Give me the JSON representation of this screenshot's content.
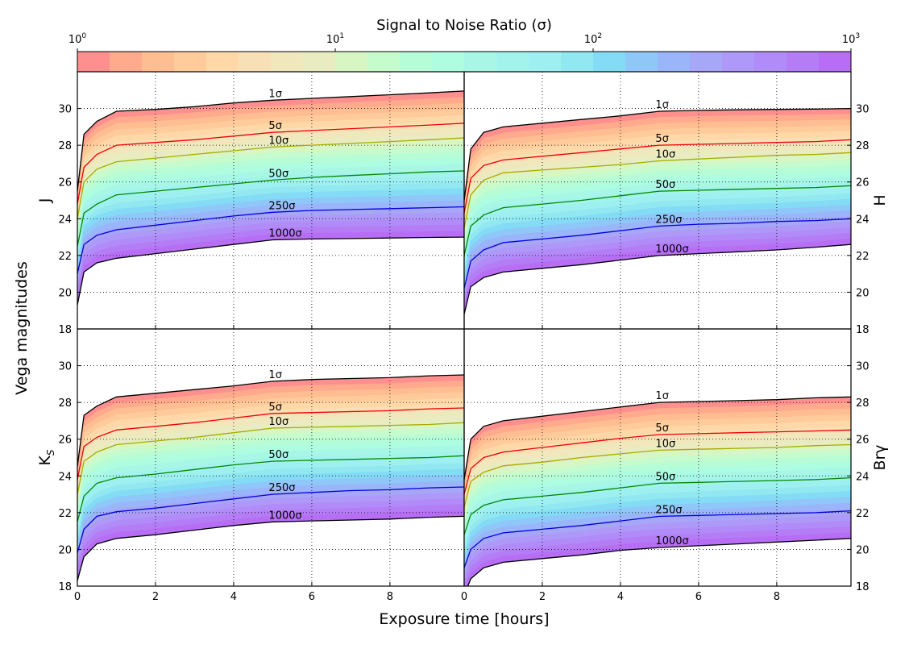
{
  "figure": {
    "colorbar_label": "Signal to Noise Ratio (σ)",
    "colorbar_ticks": [
      {
        "base": "10",
        "exp": "0"
      },
      {
        "base": "10",
        "exp": "1"
      },
      {
        "base": "10",
        "exp": "2"
      },
      {
        "base": "10",
        "exp": "3"
      }
    ],
    "colorbar_colors": [
      "#fe8f8f",
      "#ffaa8c",
      "#ffbe92",
      "#ffcb9b",
      "#ffd8a7",
      "#f8e0b6",
      "#f0e8bc",
      "#e9ebc0",
      "#d8f6c4",
      "#c5fbcd",
      "#b5fcd7",
      "#aefde0",
      "#a8f7e6",
      "#a2f3ec",
      "#9ef0f0",
      "#91e8f0",
      "#84dbf5",
      "#8fc8f8",
      "#9bb5fa",
      "#a7a7f8",
      "#ae99f8",
      "#b18bf7",
      "#b47df6",
      "#b76ef5"
    ],
    "ylabel": "Vega magnitudes",
    "xlabel": "Exposure time [hours]",
    "yticks": [
      "18",
      "20",
      "22",
      "24",
      "26",
      "28",
      "30"
    ],
    "xticks": [
      "0",
      "2",
      "4",
      "6",
      "8"
    ]
  },
  "chart_data": [
    {
      "type": "area",
      "band_label": "J",
      "position": "top-left",
      "x": [
        0,
        0.17,
        0.5,
        1,
        2,
        3,
        4,
        5,
        6,
        7,
        8,
        9,
        9.9
      ],
      "xlim": [
        0,
        9.9
      ],
      "ylim": [
        18,
        32
      ],
      "fill_range": [
        "1σ",
        "1000σ"
      ],
      "series": [
        {
          "name": "1σ",
          "values": [
            25.5,
            28.6,
            29.3,
            29.85,
            29.95,
            30.1,
            30.3,
            30.45,
            30.55,
            30.65,
            30.75,
            30.85,
            30.95
          ],
          "color": "#000000"
        },
        {
          "name": "5σ",
          "values": [
            24.8,
            26.8,
            27.5,
            28.0,
            28.15,
            28.3,
            28.5,
            28.7,
            28.8,
            28.9,
            29.0,
            29.1,
            29.2
          ],
          "color": "#ee0000"
        },
        {
          "name": "10σ",
          "values": [
            24.0,
            26.0,
            26.7,
            27.1,
            27.3,
            27.5,
            27.7,
            27.9,
            28.0,
            28.1,
            28.2,
            28.3,
            28.4
          ],
          "color": "#aaaa00"
        },
        {
          "name": "50σ",
          "values": [
            22.5,
            24.3,
            24.8,
            25.3,
            25.5,
            25.7,
            25.9,
            26.1,
            26.25,
            26.35,
            26.45,
            26.55,
            26.6
          ],
          "color": "#008800"
        },
        {
          "name": "250σ",
          "values": [
            21.0,
            22.6,
            23.1,
            23.4,
            23.65,
            23.9,
            24.15,
            24.35,
            24.45,
            24.5,
            24.55,
            24.6,
            24.65
          ],
          "color": "#0000dd"
        },
        {
          "name": "1000σ",
          "values": [
            19.3,
            21.1,
            21.6,
            21.85,
            22.1,
            22.35,
            22.6,
            22.85,
            22.9,
            22.92,
            22.95,
            22.98,
            23.0
          ],
          "color": "#000000"
        }
      ]
    },
    {
      "type": "area",
      "band_label": "H",
      "position": "top-right",
      "x": [
        0,
        0.17,
        0.5,
        1,
        2,
        3,
        4,
        5,
        6,
        7,
        8,
        9,
        9.9
      ],
      "xlim": [
        0,
        9.9
      ],
      "ylim": [
        18,
        32
      ],
      "fill_range": [
        "1σ",
        "1000σ"
      ],
      "series": [
        {
          "name": "1σ",
          "values": [
            25.0,
            27.8,
            28.7,
            29.0,
            29.2,
            29.4,
            29.6,
            29.85,
            29.9,
            29.93,
            29.95,
            29.97,
            30.0
          ],
          "color": "#000000"
        },
        {
          "name": "5σ",
          "values": [
            24.3,
            26.2,
            26.9,
            27.2,
            27.4,
            27.6,
            27.8,
            28.0,
            28.05,
            28.1,
            28.15,
            28.2,
            28.3
          ],
          "color": "#ee0000"
        },
        {
          "name": "10σ",
          "values": [
            23.5,
            25.3,
            26.1,
            26.5,
            26.65,
            26.8,
            26.95,
            27.15,
            27.25,
            27.35,
            27.45,
            27.5,
            27.6
          ],
          "color": "#aaaa00"
        },
        {
          "name": "50σ",
          "values": [
            22.0,
            23.6,
            24.2,
            24.6,
            24.8,
            25.0,
            25.25,
            25.5,
            25.55,
            25.6,
            25.65,
            25.7,
            25.8
          ],
          "color": "#008800"
        },
        {
          "name": "250σ",
          "values": [
            20.2,
            21.7,
            22.3,
            22.7,
            22.9,
            23.1,
            23.35,
            23.6,
            23.7,
            23.75,
            23.85,
            23.9,
            24.0
          ],
          "color": "#0000dd"
        },
        {
          "name": "1000σ",
          "values": [
            18.8,
            20.3,
            20.8,
            21.1,
            21.3,
            21.5,
            21.75,
            22.0,
            22.1,
            22.2,
            22.3,
            22.45,
            22.6
          ],
          "color": "#000000"
        }
      ]
    },
    {
      "type": "area",
      "band_label": "K",
      "band_label_sub": "S",
      "position": "bottom-left",
      "x": [
        0,
        0.17,
        0.5,
        1,
        2,
        3,
        4,
        5,
        6,
        7,
        8,
        9,
        9.9
      ],
      "xlim": [
        0,
        9.9
      ],
      "ylim": [
        18,
        32
      ],
      "fill_range": [
        "1σ",
        "1000σ"
      ],
      "series": [
        {
          "name": "1σ",
          "values": [
            24.5,
            27.3,
            27.8,
            28.3,
            28.5,
            28.7,
            28.9,
            29.15,
            29.25,
            29.3,
            29.35,
            29.45,
            29.5
          ],
          "color": "#000000"
        },
        {
          "name": "5σ",
          "values": [
            23.8,
            25.6,
            26.1,
            26.5,
            26.7,
            26.9,
            27.15,
            27.4,
            27.45,
            27.5,
            27.55,
            27.65,
            27.7
          ],
          "color": "#ee0000"
        },
        {
          "name": "10σ",
          "values": [
            23.0,
            24.8,
            25.3,
            25.7,
            25.9,
            26.1,
            26.35,
            26.6,
            26.65,
            26.7,
            26.75,
            26.8,
            26.9
          ],
          "color": "#aaaa00"
        },
        {
          "name": "50σ",
          "values": [
            21.5,
            22.9,
            23.6,
            23.9,
            24.1,
            24.35,
            24.6,
            24.8,
            24.85,
            24.9,
            24.95,
            25.0,
            25.1
          ],
          "color": "#008800"
        },
        {
          "name": "250σ",
          "values": [
            19.8,
            21.1,
            21.8,
            22.05,
            22.25,
            22.5,
            22.75,
            23.0,
            23.1,
            23.2,
            23.25,
            23.35,
            23.4
          ],
          "color": "#0000dd"
        },
        {
          "name": "1000σ",
          "values": [
            18.3,
            19.6,
            20.3,
            20.6,
            20.8,
            21.05,
            21.3,
            21.5,
            21.55,
            21.6,
            21.65,
            21.75,
            21.8
          ],
          "color": "#000000"
        }
      ]
    },
    {
      "type": "area",
      "band_label": "Brγ",
      "position": "bottom-right",
      "x": [
        0,
        0.17,
        0.5,
        1,
        2,
        3,
        4,
        5,
        6,
        7,
        8,
        9,
        9.9
      ],
      "xlim": [
        0,
        9.9
      ],
      "ylim": [
        18,
        32
      ],
      "fill_range": [
        "1σ",
        "1000σ"
      ],
      "series": [
        {
          "name": "1σ",
          "values": [
            23.8,
            26.0,
            26.7,
            27.0,
            27.25,
            27.5,
            27.75,
            28.0,
            28.05,
            28.1,
            28.15,
            28.25,
            28.3
          ],
          "color": "#000000"
        },
        {
          "name": "5σ",
          "values": [
            23.0,
            24.4,
            25.0,
            25.3,
            25.55,
            25.8,
            26.05,
            26.25,
            26.3,
            26.35,
            26.4,
            26.45,
            26.5
          ],
          "color": "#ee0000"
        },
        {
          "name": "10σ",
          "values": [
            22.3,
            23.7,
            24.2,
            24.55,
            24.75,
            25.0,
            25.2,
            25.4,
            25.45,
            25.5,
            25.55,
            25.65,
            25.7
          ],
          "color": "#aaaa00"
        },
        {
          "name": "50σ",
          "values": [
            20.8,
            21.9,
            22.4,
            22.7,
            22.9,
            23.1,
            23.35,
            23.6,
            23.65,
            23.7,
            23.75,
            23.8,
            23.9
          ],
          "color": "#008800"
        },
        {
          "name": "250σ",
          "values": [
            19.0,
            20.0,
            20.6,
            20.9,
            21.1,
            21.3,
            21.55,
            21.8,
            21.85,
            21.9,
            21.95,
            22.0,
            22.1
          ],
          "color": "#0000dd"
        },
        {
          "name": "1000σ",
          "values": [
            17.5,
            18.4,
            19.0,
            19.3,
            19.5,
            19.7,
            19.95,
            20.1,
            20.2,
            20.3,
            20.4,
            20.5,
            20.6
          ],
          "color": "#000000"
        }
      ]
    }
  ]
}
